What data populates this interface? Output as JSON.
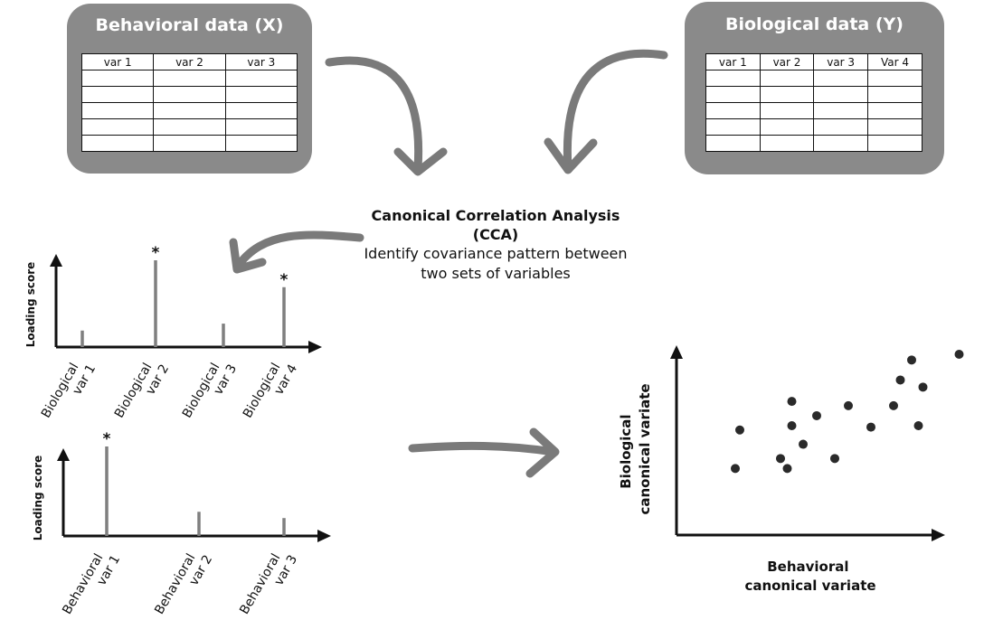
{
  "behavioral_panel": {
    "title": "Behavioral data (X)",
    "columns": [
      "var 1",
      "var 2",
      "var 3"
    ],
    "empty_rows": 5
  },
  "biological_panel": {
    "title": "Biological data (Y)",
    "columns": [
      "var 1",
      "var 2",
      "var 3",
      "Var 4"
    ],
    "empty_rows": 5
  },
  "cca": {
    "title": "Canonical Correlation Analysis (CCA)",
    "description": "Identify covariance pattern between two sets of variables"
  },
  "bio_loadings": {
    "ylabel": "Loading score",
    "bars": [
      {
        "label": "Biological var 1",
        "value": 0.19,
        "significant": false
      },
      {
        "label": "Biological var 2",
        "value": 1.0,
        "significant": true
      },
      {
        "label": "Biological var 3",
        "value": 0.27,
        "significant": false
      },
      {
        "label": "Biological var 4",
        "value": 0.69,
        "significant": true
      }
    ],
    "marker": "*"
  },
  "beh_loadings": {
    "ylabel": "Loading score",
    "bars": [
      {
        "label": "Behavioral var 1",
        "value": 1.0,
        "significant": true
      },
      {
        "label": "Behavioral var 2",
        "value": 0.27,
        "significant": false
      },
      {
        "label": "Behavioral var 3",
        "value": 0.2,
        "significant": false
      }
    ],
    "marker": "*"
  },
  "scatter": {
    "xlabel": "Behavioral canonical variate",
    "ylabel": "Biological canonical variate",
    "points": [
      [
        0.1,
        0.2
      ],
      [
        0.12,
        0.47
      ],
      [
        0.3,
        0.27
      ],
      [
        0.33,
        0.2
      ],
      [
        0.35,
        0.5
      ],
      [
        0.35,
        0.67
      ],
      [
        0.4,
        0.37
      ],
      [
        0.46,
        0.57
      ],
      [
        0.54,
        0.27
      ],
      [
        0.6,
        0.64
      ],
      [
        0.7,
        0.49
      ],
      [
        0.8,
        0.64
      ],
      [
        0.83,
        0.82
      ],
      [
        0.88,
        0.96
      ],
      [
        0.91,
        0.5
      ],
      [
        0.93,
        0.77
      ],
      [
        1.09,
        1.0
      ]
    ]
  },
  "colors": {
    "panel": "#8a8a8a",
    "arrow": "#7a7a7a",
    "bar": "#7f7f7f",
    "ink": "#111111"
  }
}
